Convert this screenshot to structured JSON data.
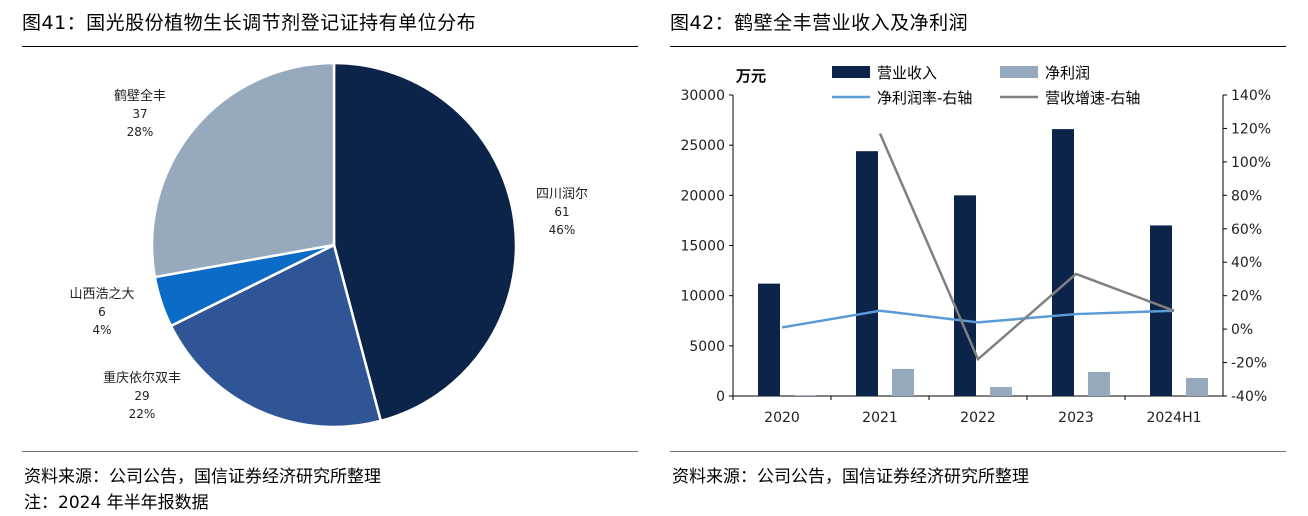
{
  "left": {
    "title": "图41：国光股份植物生长调节剂登记证持有单位分布",
    "source": "资料来源：公司公告，国信证券经济研究所整理",
    "note": "注：2024 年半年报数据"
  },
  "right": {
    "title": "图42：鹤壁全丰营业收入及净利润",
    "source": "资料来源：公司公告，国信证券经济研究所整理"
  },
  "chart_data": [
    {
      "type": "pie",
      "start_angle": "12 o'clock, clockwise",
      "slices": [
        {
          "name": "四川润尔",
          "value": 61,
          "percent": "46%",
          "color": "#0c2449"
        },
        {
          "name": "重庆依尔双丰",
          "value": 29,
          "percent": "22%",
          "color": "#2f5597"
        },
        {
          "name": "山西浩之大",
          "value": 6,
          "percent": "4%",
          "color": "#0a6cc7"
        },
        {
          "name": "鹤壁全丰",
          "value": 37,
          "percent": "28%",
          "color": "#97a9bd"
        }
      ]
    },
    {
      "type": "bar+line",
      "categories": [
        "2020",
        "2021",
        "2022",
        "2023",
        "2024H1"
      ],
      "y_left": {
        "unit_label": "万元",
        "range": [
          0,
          30000
        ],
        "ticks": [
          "0",
          "5000",
          "10000",
          "15000",
          "20000",
          "25000",
          "30000"
        ]
      },
      "y_right": {
        "range": [
          -40,
          140
        ],
        "ticks": [
          "-40%",
          "-20%",
          "0%",
          "20%",
          "40%",
          "60%",
          "80%",
          "100%",
          "120%",
          "140%"
        ]
      },
      "bar_series": [
        {
          "name": "营业收入",
          "color": "#0c2449",
          "values": [
            11200,
            24400,
            20000,
            26600,
            17000
          ]
        },
        {
          "name": "净利润",
          "color": "#97a9bd",
          "values": [
            80,
            2700,
            900,
            2400,
            1800
          ]
        }
      ],
      "line_series": [
        {
          "name": "净利润率-右轴",
          "color": "#5b9bd5",
          "values": [
            1,
            11,
            4,
            9,
            11
          ]
        },
        {
          "name": "营收增速-右轴",
          "color": "#808080",
          "values": [
            null,
            117,
            -18,
            33,
            11
          ]
        }
      ],
      "legend_position": "top",
      "grid": false
    }
  ]
}
